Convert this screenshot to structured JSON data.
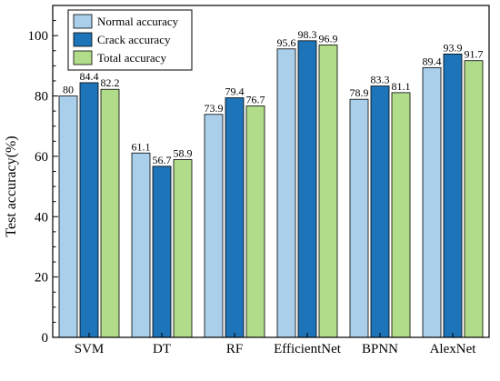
{
  "chart_data": {
    "type": "bar",
    "title": "",
    "xlabel": "",
    "ylabel": "Test accuracy(%)",
    "ylim": [
      0,
      110
    ],
    "yticks": [
      0,
      20,
      40,
      60,
      80,
      100
    ],
    "grid": false,
    "legend_position": "top-left",
    "categories": [
      "SVM",
      "DT",
      "RF",
      "EfficientNet",
      "BPNN",
      "AlexNet"
    ],
    "series": [
      {
        "name": "Normal accuracy",
        "color": "#a9cfea",
        "values": [
          80,
          61.1,
          73.9,
          95.6,
          78.9,
          89.4
        ],
        "labels": [
          "80",
          "61.1",
          "73.9",
          "95.6",
          "78.9",
          "89.4"
        ]
      },
      {
        "name": "Crack accuracy",
        "color": "#1d74b9",
        "values": [
          84.4,
          56.7,
          79.4,
          98.3,
          83.3,
          93.9
        ],
        "labels": [
          "84.4",
          "56.7",
          "79.4",
          "98.3",
          "83.3",
          "93.9"
        ]
      },
      {
        "name": "Total accuracy",
        "color": "#b1dc8a",
        "values": [
          82.2,
          58.9,
          76.7,
          96.9,
          81.1,
          91.7
        ],
        "labels": [
          "82.2",
          "58.9",
          "76.7",
          "96.9",
          "81.1",
          "91.7"
        ]
      }
    ]
  }
}
